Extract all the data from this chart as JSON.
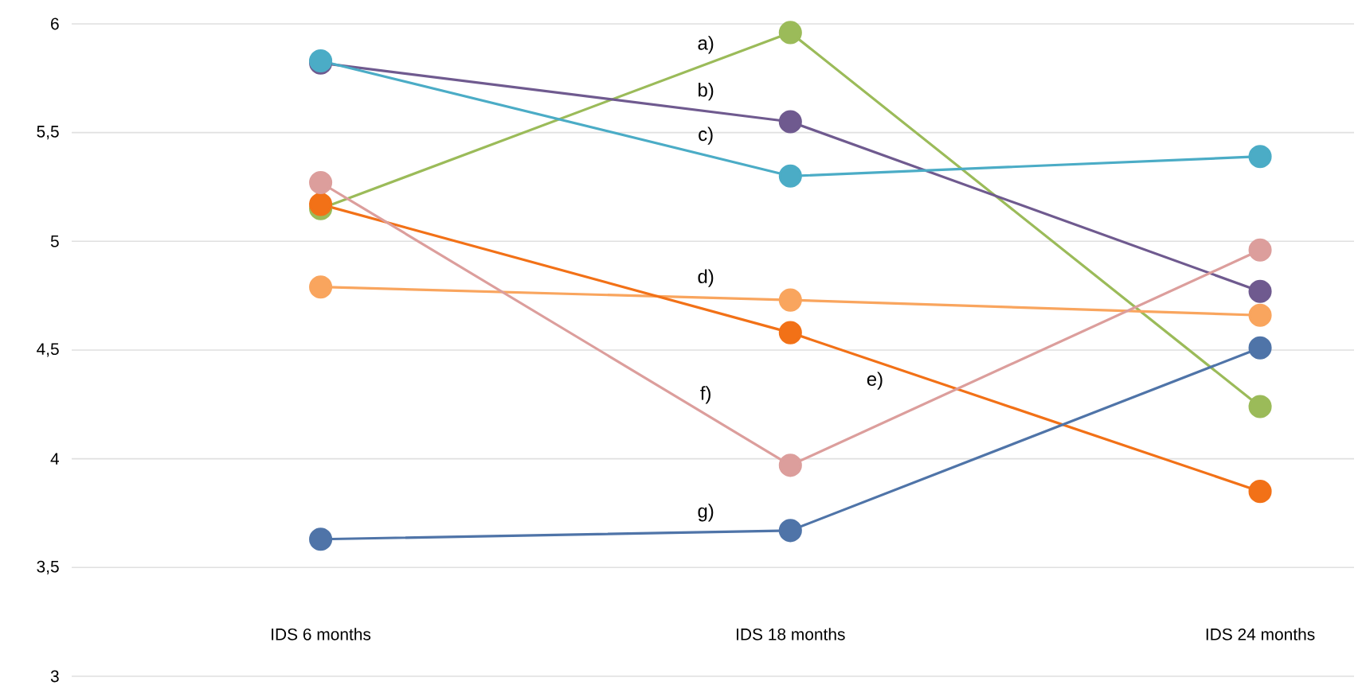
{
  "chart_data": {
    "type": "line",
    "categories": [
      "IDS 6 months",
      "IDS 18 months",
      "IDS 24 months"
    ],
    "series": [
      {
        "name": "a)",
        "color": "#9bbb59",
        "values": [
          5.15,
          5.96,
          4.24
        ]
      },
      {
        "name": "b)",
        "color": "#6f5a8f",
        "values": [
          5.82,
          5.55,
          4.77
        ]
      },
      {
        "name": "c)",
        "color": "#4bacc6",
        "values": [
          5.83,
          5.3,
          5.39
        ]
      },
      {
        "name": "d)",
        "color": "#f9a55e",
        "values": [
          4.79,
          4.73,
          4.66
        ]
      },
      {
        "name": "e)",
        "color": "#f27117",
        "values": [
          5.17,
          4.58,
          3.85
        ]
      },
      {
        "name": "f)",
        "color": "#dc9e9c",
        "values": [
          5.27,
          3.97,
          4.96
        ]
      },
      {
        "name": "g)",
        "color": "#4f74a8",
        "values": [
          3.63,
          3.67,
          4.51
        ]
      }
    ],
    "ylim": [
      3,
      6
    ],
    "yticks": [
      3,
      {
        "value": 3.5,
        "label": "3,5"
      },
      4,
      {
        "value": 4.5,
        "label": "4,5"
      },
      5,
      {
        "value": 5.5,
        "label": "5,5"
      },
      6
    ],
    "grid": "y",
    "marker": "circle",
    "line_style": "solid"
  }
}
